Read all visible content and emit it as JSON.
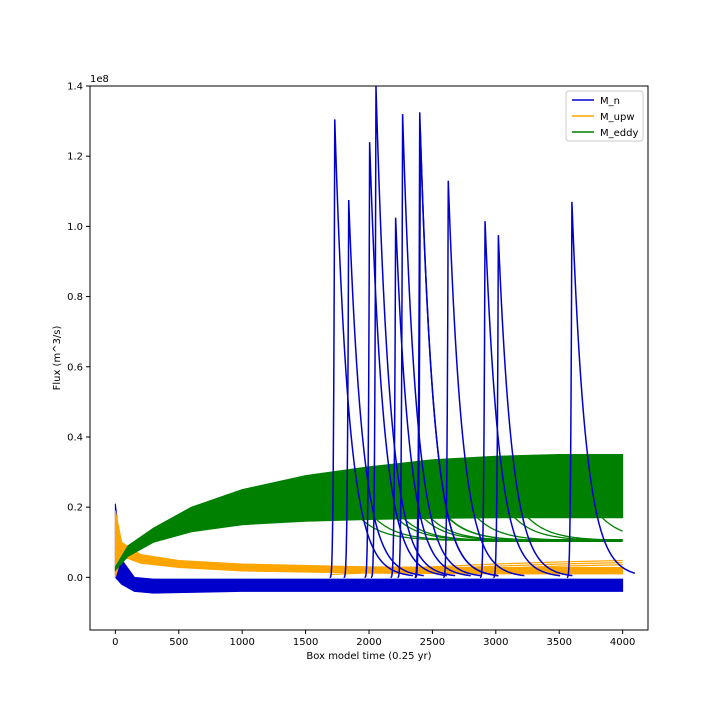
{
  "chart_data": {
    "type": "line",
    "title": "",
    "xlabel": "Box model time (0.25 yr)",
    "ylabel": "Flux (m^3/s)",
    "y_offset_label": "1e8",
    "xlim": [
      -200,
      4200
    ],
    "ylim": [
      -0.15,
      1.4
    ],
    "x_ticks": [
      0,
      500,
      1000,
      1500,
      2000,
      2500,
      3000,
      3500,
      4000
    ],
    "x_tick_labels": [
      "0",
      "500",
      "1000",
      "1500",
      "2000",
      "2500",
      "3000",
      "3500",
      "4000"
    ],
    "y_ticks": [
      0.0,
      0.2,
      0.4,
      0.6,
      0.8,
      1.0,
      1.2,
      1.4
    ],
    "y_tick_labels": [
      "0.0",
      "0.2",
      "0.4",
      "0.6",
      "0.8",
      "1.0",
      "1.2",
      "1.4"
    ],
    "grid": false,
    "legend_position": "top-right",
    "series": [
      {
        "name": "M_n",
        "color": "#0000cc",
        "band": {
          "x": [
            0,
            50,
            150,
            300,
            1000,
            2000,
            3000,
            4000
          ],
          "low": [
            0.0,
            -0.02,
            -0.04,
            -0.045,
            -0.04,
            -0.04,
            -0.04,
            -0.04
          ],
          "high": [
            0.21,
            0.05,
            0.0,
            -0.005,
            -0.005,
            -0.005,
            -0.005,
            -0.005
          ]
        },
        "spikes": [
          {
            "x": 1730,
            "peak": 1.305
          },
          {
            "x": 1840,
            "peak": 1.075
          },
          {
            "x": 2005,
            "peak": 1.24
          },
          {
            "x": 2055,
            "peak": 1.4
          },
          {
            "x": 2210,
            "peak": 1.025
          },
          {
            "x": 2265,
            "peak": 1.32
          },
          {
            "x": 2400,
            "peak": 1.325
          },
          {
            "x": 2405,
            "peak": 1.27
          },
          {
            "x": 2625,
            "peak": 1.13
          },
          {
            "x": 2915,
            "peak": 1.015
          },
          {
            "x": 3020,
            "peak": 0.975
          },
          {
            "x": 3600,
            "peak": 1.07
          }
        ]
      },
      {
        "name": "M_upw",
        "color": "#ffa500",
        "band": {
          "x": [
            0,
            50,
            200,
            500,
            1000,
            2000,
            3000,
            4000
          ],
          "low": [
            0.0,
            0.06,
            0.04,
            0.028,
            0.018,
            0.012,
            0.01,
            0.01
          ],
          "high": [
            0.19,
            0.1,
            0.065,
            0.048,
            0.038,
            0.03,
            0.028,
            0.028
          ]
        },
        "tails": {
          "x": [
            1700,
            2000,
            2500,
            3000,
            3500,
            4000
          ],
          "y": [
            0.02,
            0.025,
            0.03,
            0.038,
            0.044,
            0.048
          ]
        }
      },
      {
        "name": "M_eddy",
        "color": "#008000",
        "band": {
          "x": [
            0,
            100,
            300,
            600,
            1000,
            1500,
            2000,
            2500,
            3000,
            3500,
            4000
          ],
          "low": [
            0.02,
            0.06,
            0.1,
            0.13,
            0.15,
            0.16,
            0.165,
            0.168,
            0.17,
            0.17,
            0.17
          ],
          "high": [
            0.03,
            0.09,
            0.14,
            0.2,
            0.25,
            0.29,
            0.315,
            0.335,
            0.345,
            0.35,
            0.35
          ]
        },
        "floor": 0.105
      }
    ]
  }
}
